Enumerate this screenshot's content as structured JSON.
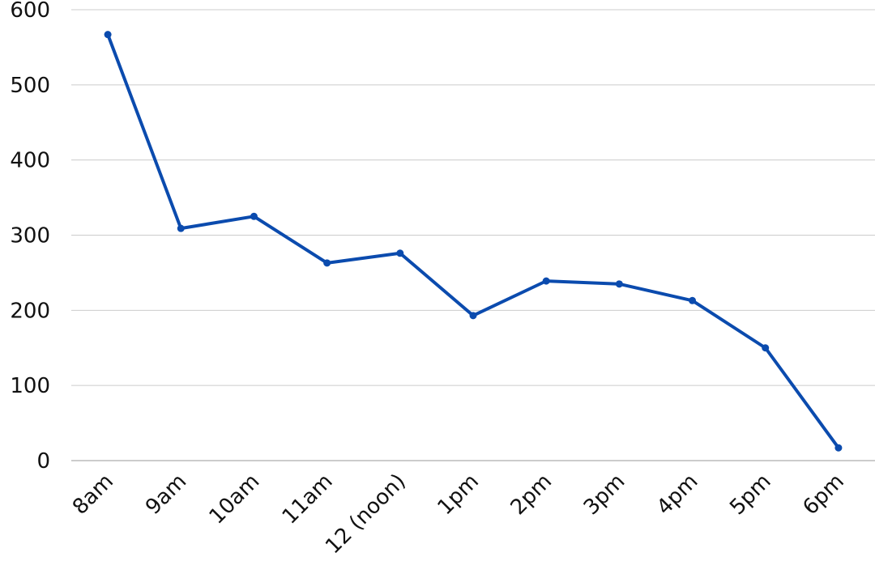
{
  "chart_data": {
    "type": "line",
    "title": "",
    "xlabel": "",
    "ylabel": "",
    "categories": [
      "8am",
      "9am",
      "10am",
      "11am",
      "12 (noon)",
      "1pm",
      "2pm",
      "3pm",
      "4pm",
      "5pm",
      "6pm"
    ],
    "series": [
      {
        "values": [
          567,
          309,
          325,
          263,
          276,
          193,
          239,
          235,
          213,
          150,
          17
        ]
      }
    ],
    "ylim": [
      0,
      600
    ],
    "yticks": [
      0,
      100,
      200,
      300,
      400,
      500,
      600
    ],
    "grid": true,
    "legend": "none",
    "colors": {
      "line": "#0B4BAE",
      "grid": "#CCCCCC"
    }
  }
}
